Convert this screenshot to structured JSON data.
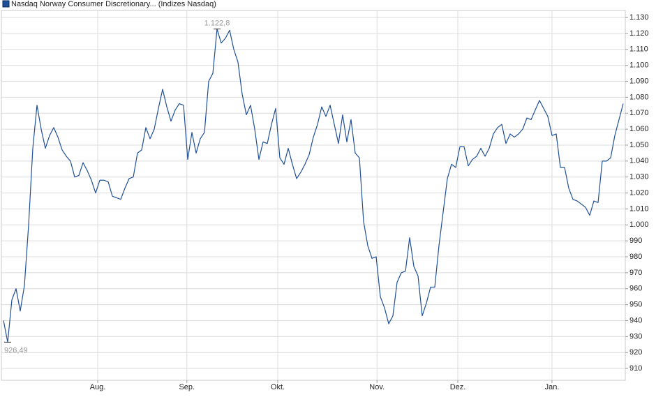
{
  "chart_data": {
    "type": "line",
    "series": [
      {
        "name": "Nasdaq Norway Consumer Discretionary... (Indizes Nasdaq)",
        "color": "#1f4f96",
        "values": [
          940,
          926.49,
          953,
          960,
          946,
          962,
          1000,
          1048,
          1075,
          1060,
          1048,
          1056,
          1061,
          1055,
          1047,
          1043,
          1040,
          1030,
          1031,
          1039,
          1034,
          1028,
          1020,
          1028,
          1028,
          1027,
          1018,
          1017,
          1016,
          1023,
          1029,
          1030,
          1045,
          1047,
          1061,
          1054,
          1060,
          1073,
          1085,
          1074,
          1065,
          1072,
          1076,
          1075,
          1041,
          1058,
          1045,
          1054,
          1058,
          1090,
          1095,
          1122.8,
          1114,
          1117,
          1122,
          1110,
          1102,
          1082,
          1069,
          1075,
          1060,
          1041,
          1052,
          1051,
          1063,
          1073,
          1042,
          1038,
          1048,
          1038,
          1029,
          1033,
          1038,
          1044,
          1055,
          1063,
          1074,
          1068,
          1075,
          1063,
          1051,
          1069,
          1052,
          1066,
          1045,
          1042,
          1002,
          987,
          979,
          980,
          955,
          948,
          938,
          943,
          964,
          970,
          971,
          992,
          974,
          968,
          943,
          951,
          961,
          961,
          987,
          1008,
          1029,
          1038,
          1036,
          1049,
          1049,
          1037,
          1041,
          1043,
          1048,
          1043,
          1048,
          1057,
          1061,
          1063,
          1051,
          1057,
          1055,
          1057,
          1060,
          1067,
          1066,
          1072,
          1078,
          1073,
          1068,
          1056,
          1057,
          1036,
          1036,
          1023,
          1016,
          1015,
          1013,
          1011,
          1006,
          1015,
          1014,
          1040,
          1040,
          1042,
          1056,
          1066,
          1076
        ]
      }
    ],
    "annotations": [
      {
        "x": 51,
        "y": 1122.8,
        "label": "1.122,8"
      },
      {
        "x": 1,
        "y": 926.49,
        "label": "926,49"
      }
    ],
    "xlim": [
      -0.5,
      148.5
    ],
    "xticks": [
      {
        "value": 22.5,
        "label": "Aug."
      },
      {
        "value": 43.8,
        "label": "Sep."
      },
      {
        "value": 65.5,
        "label": "Okt."
      },
      {
        "value": 89.2,
        "label": "Nov."
      },
      {
        "value": 108.5,
        "label": "Dez."
      },
      {
        "value": 131,
        "label": "Jan."
      }
    ],
    "ylim": [
      902.6,
      1134.4
    ],
    "yticks": [
      910,
      920,
      930,
      940,
      950,
      960,
      970,
      980,
      990,
      {
        "value": 1000,
        "label": "1.000"
      },
      {
        "value": 1010,
        "label": "1.010"
      },
      {
        "value": 1020,
        "label": "1.020"
      },
      {
        "value": 1030,
        "label": "1.030"
      },
      {
        "value": 1040,
        "label": "1.040"
      },
      {
        "value": 1050,
        "label": "1.050"
      },
      {
        "value": 1060,
        "label": "1.060"
      },
      {
        "value": 1070,
        "label": "1.070"
      },
      {
        "value": 1080,
        "label": "1.080"
      },
      {
        "value": 1090,
        "label": "1.090"
      },
      {
        "value": 1100,
        "label": "1.100"
      },
      {
        "value": 1110,
        "label": "1.110"
      },
      {
        "value": 1120,
        "label": "1.120"
      },
      {
        "value": 1130,
        "label": "1.130"
      }
    ],
    "grid": true
  }
}
